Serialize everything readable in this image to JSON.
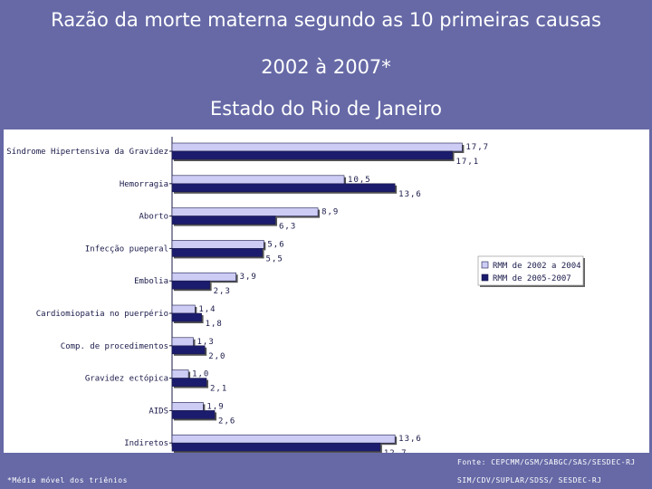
{
  "title": {
    "line1": "Razão da morte materna segundo as 10 primeiras causas",
    "line2": "2002 à 2007*",
    "line3": "Estado do Rio de Janeiro"
  },
  "footer": {
    "fonte": "Fonte: CEPCMM/GSM/SABGC/SAS/SESDEC-RJ",
    "fonte2": "SIM/CDV/SUPLAR/SDSS/ SESDEC-RJ",
    "nota": "*Média móvel dos triênios"
  },
  "colors": {
    "background": "#6669a6",
    "series1": "#ccccf5",
    "series2": "#1c1c6e"
  },
  "chart_data": {
    "type": "bar",
    "orientation": "horizontal",
    "categories": [
      "Síndrome Hipertensiva da Gravidez",
      "Hemorragia",
      "Aborto",
      "Infecção pueperal",
      "Embolia",
      "Cardiomiopatia no puerpério",
      "Comp. de procedimentos",
      "Gravidez ectópica",
      "AIDS",
      "Indiretos"
    ],
    "series": [
      {
        "name": "RMM de 2002 a 2004",
        "values": [
          17.7,
          10.5,
          8.9,
          5.6,
          3.9,
          1.4,
          1.3,
          1.0,
          1.9,
          13.6
        ],
        "labels": [
          "17,7",
          "10,5",
          "8,9",
          "5,6",
          "3,9",
          "1,4",
          "1,3",
          "1,0",
          "1,9",
          "13,6"
        ]
      },
      {
        "name": "RMM de 2005-2007",
        "values": [
          17.1,
          13.6,
          6.3,
          5.5,
          2.3,
          1.8,
          2.0,
          2.1,
          2.6,
          12.7
        ],
        "labels": [
          "17,1",
          "13,6",
          "6,3",
          "5,5",
          "2,3",
          "1,8",
          "2,0",
          "2,1",
          "2,6",
          "12,7"
        ]
      }
    ],
    "xlim": [
      0,
      18
    ],
    "grid": false,
    "legend_position": "right"
  }
}
